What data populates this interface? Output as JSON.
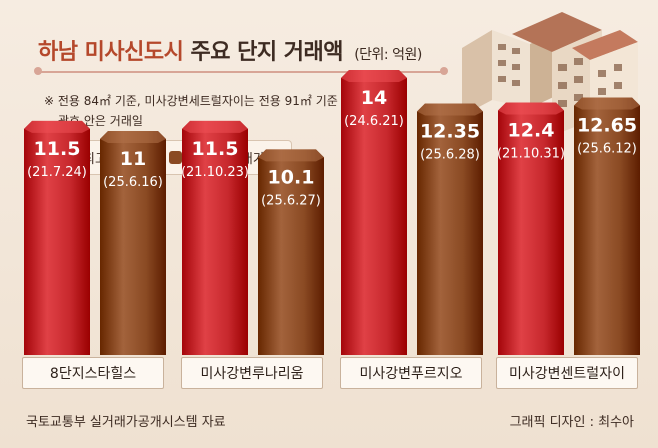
{
  "title": {
    "main": "하남 미사신도시",
    "sub": "주요 단지 거래액",
    "unit": "(단위: 억원)"
  },
  "note": {
    "line1": "※ 전용 84㎡ 기준, 미사강변세트럴자이는 전용 91㎡ 기준",
    "line2": "괄호 안은 거래일"
  },
  "legend": [
    {
      "label": "최고 거래액",
      "color": "#c7282d"
    },
    {
      "label": "최근 실거래가",
      "color": "#8a4a23"
    }
  ],
  "chart_data": {
    "type": "bar",
    "categories": [
      "8단지스타힐스",
      "미사강변루나리움",
      "미사강변푸르지오",
      "미사강변센트럴자이"
    ],
    "series": [
      {
        "name": "최고 거래액",
        "color": "#c7282d",
        "values": [
          11.5,
          11.5,
          14,
          12.4
        ],
        "labels": [
          "11.5",
          "11.5",
          "14",
          "12.4"
        ],
        "dates": [
          "(21.7.24)",
          "(21.10.23)",
          "(24.6.21)",
          "(21.10.31)"
        ]
      },
      {
        "name": "최근 실거래가",
        "color": "#8a4a23",
        "values": [
          11,
          10.1,
          12.35,
          12.65
        ],
        "labels": [
          "11",
          "10.1",
          "12.35",
          "12.65"
        ],
        "dates": [
          "(25.6.16)",
          "(25.6.27)",
          "(25.6.28)",
          "(25.6.12)"
        ]
      }
    ]
  },
  "footer": {
    "source": "국토교통부 실거래가공개시스템 자료",
    "credit": "그래픽 디자인 : 최수아"
  }
}
